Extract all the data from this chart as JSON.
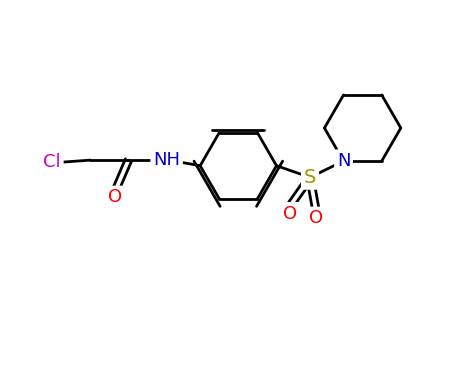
{
  "background_color": "#ffffff",
  "bond_color": "#000000",
  "cl_color": "#cc00cc",
  "o_color": "#ff0000",
  "n_color": "#0000cc",
  "s_color": "#999900",
  "figsize": [
    4.72,
    3.71
  ],
  "dpi": 100,
  "xlim": [
    0,
    10
  ],
  "ylim": [
    0,
    7.85
  ],
  "lw": 2.0,
  "fs": 13
}
